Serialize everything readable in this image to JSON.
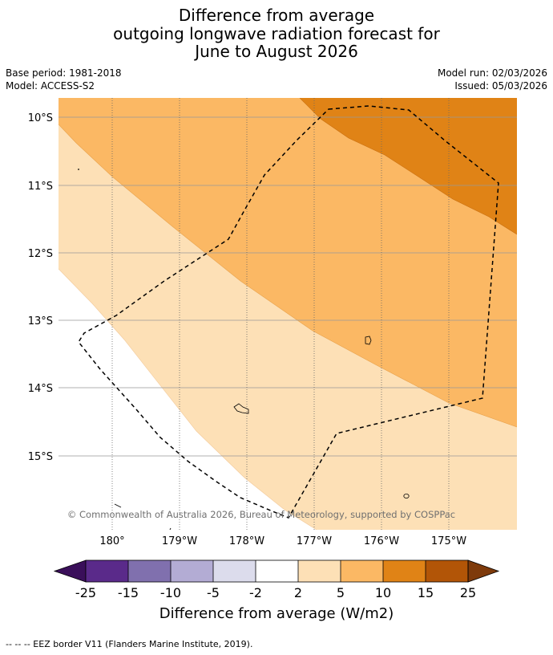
{
  "title": {
    "line1": "Difference from average",
    "line2": "outgoing longwave radiation forecast for",
    "line3": "June to August 2026"
  },
  "meta": {
    "base_period": "Base period: 1981-2018",
    "model": "Model: ACCESS-S2",
    "model_run": "Model run: 02/03/2026",
    "issued": "Issued: 05/03/2026"
  },
  "map": {
    "lat_labels": [
      "10°S",
      "11°S",
      "12°S",
      "13°S",
      "14°S",
      "15°S"
    ],
    "lon_labels": [
      "180°",
      "179°W",
      "178°W",
      "177°W",
      "176°W",
      "175°W"
    ],
    "copyright": "© Commonwealth of Australia 2026, Bureau of Meteorology, supported by COSPPac"
  },
  "colorbar": {
    "tick_labels": [
      "-25",
      "-15",
      "-10",
      "-5",
      "-2",
      "2",
      "5",
      "10",
      "15",
      "25"
    ],
    "label": "Difference from average (W/m2)",
    "colors": {
      "below_min": "#3a0f5a",
      "b1": "#5a2a8a",
      "b2": "#8070ae",
      "b3": "#b3acd4",
      "b4": "#dcdcec",
      "b5": "#ffffff",
      "b6": "#fde0b6",
      "b7": "#fbb864",
      "b8": "#e08316",
      "b9": "#b25507",
      "above_max": "#7e3a0b"
    }
  },
  "footer": {
    "legend_text": "--  --  -- EEZ border V11 (Flanders Marine Institute, 2019)."
  }
}
